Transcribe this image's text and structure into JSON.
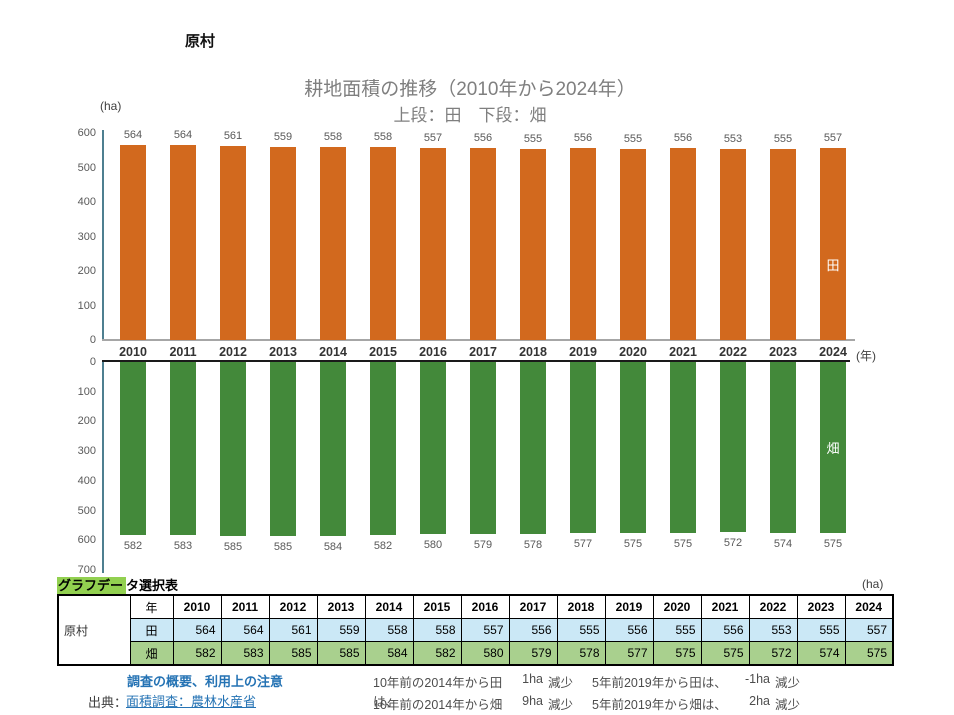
{
  "header": {
    "region": "原村"
  },
  "chart": {
    "title": "耕地面積の推移（2010年から2024年）",
    "subtitle": "上段：田　下段：畑",
    "unit_y": "(ha)",
    "unit_x": "(年)"
  },
  "chart_data": {
    "type": "bar",
    "title": "耕地面積の推移（2010年から2024年）",
    "subtitle": "上段：田　下段：畑",
    "ylabel": "(ha)",
    "xlabel": "(年)",
    "categories": [
      "2010",
      "2011",
      "2012",
      "2013",
      "2014",
      "2015",
      "2016",
      "2017",
      "2018",
      "2019",
      "2020",
      "2021",
      "2022",
      "2023",
      "2024"
    ],
    "series": [
      {
        "name": "田",
        "color": "#d2691e",
        "axis_max": 600,
        "inverted": false,
        "ticks": [
          600,
          500,
          400,
          300,
          200,
          100,
          0
        ],
        "values": [
          564,
          564,
          561,
          559,
          558,
          558,
          557,
          556,
          555,
          556,
          555,
          556,
          553,
          555,
          557
        ]
      },
      {
        "name": "畑",
        "color": "#43893a",
        "axis_max": 700,
        "inverted": true,
        "ticks": [
          0,
          100,
          200,
          300,
          400,
          500,
          600,
          700
        ],
        "values": [
          582,
          583,
          585,
          585,
          584,
          582,
          580,
          579,
          578,
          577,
          575,
          575,
          572,
          574,
          575
        ]
      }
    ],
    "grid": false,
    "legend_position": "in-bar-right"
  },
  "table": {
    "caption": {
      "highlight": "グラフデー",
      "rest": "タ選択表"
    },
    "unit": "(ha)",
    "row_header": "原村",
    "year_label": "年",
    "row_colors": [
      "#cbe8f6",
      "#a9d08e"
    ]
  },
  "footer": {
    "survey_link": "調査の概要、利用上の注意",
    "source_label": "出典：",
    "source_link": "面積調査：農林水産省",
    "notes": [
      {
        "label10": "10年前の2014年から田は、",
        "val10": "1ha",
        "word10": "減少",
        "label5": "5年前2019年から田は、",
        "val5": "-1ha",
        "word5": "減少"
      },
      {
        "label10": "10年前の2014年から畑は、",
        "val10": "9ha",
        "word10": "減少",
        "label5": "5年前2019年から畑は、",
        "val5": "2ha",
        "word5": "減少"
      }
    ]
  }
}
